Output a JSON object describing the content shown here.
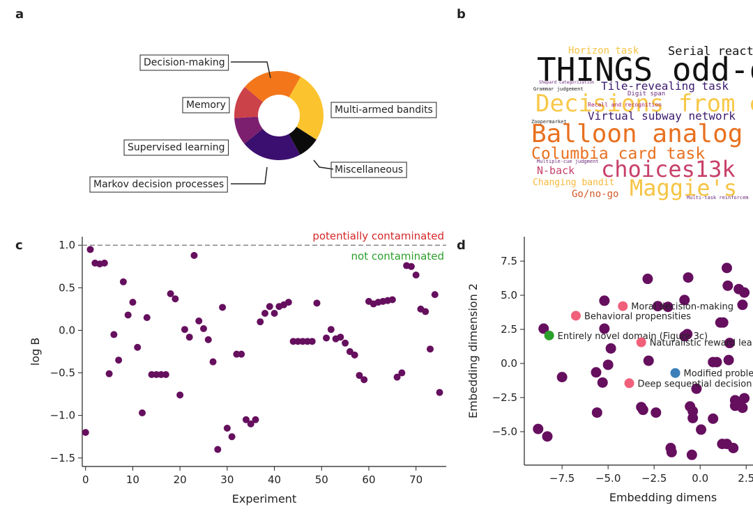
{
  "chart_data": [
    {
      "type": "donut",
      "panel": "a",
      "categories": [
        "Decision-making",
        "Multi-armed bandits",
        "Miscellaneous",
        "Markov decision processes",
        "Supervised learning",
        "Memory"
      ],
      "values": [
        22,
        26,
        8,
        22,
        10,
        12
      ],
      "colors": [
        "#f3771a",
        "#fbc42f",
        "#0b0b0b",
        "#3b0f6f",
        "#7b1f6e",
        "#cc4249"
      ]
    },
    {
      "type": "wordcloud",
      "panel": "b",
      "words": [
        {
          "text": "Horizon task",
          "color": "#f6c445"
        },
        {
          "text": "Serial react",
          "color": "#111111"
        },
        {
          "text": "THINGS odd-o",
          "color": "#111111"
        },
        {
          "text": "Tile-revealing task",
          "color": "#3b1a6e"
        },
        {
          "text": "Decisions from e",
          "color": "#f8c848"
        },
        {
          "text": "Virtual subway network",
          "color": "#3b1a6e"
        },
        {
          "text": "Balloon analog r",
          "color": "#e8701f"
        },
        {
          "text": "Columbia card task",
          "color": "#e8701f"
        },
        {
          "text": "N-back",
          "color": "#c8406a"
        },
        {
          "text": "choices13k",
          "color": "#c8406a"
        },
        {
          "text": "Changing bandit",
          "color": "#f6b93b"
        },
        {
          "text": "Maggie's",
          "color": "#f6c445"
        },
        {
          "text": "Go/no-go",
          "color": "#d4582a"
        },
        {
          "text": "Shepard categorization",
          "color": "#6a2a7a"
        },
        {
          "text": "Grammar judgement",
          "color": "#222222"
        },
        {
          "text": "Digit span",
          "color": "#6a2a7a"
        },
        {
          "text": "Recall and recognition",
          "color": "#a0236a"
        },
        {
          "text": "Zoopermarket",
          "color": "#222222"
        },
        {
          "text": "Multiple-cue judgment",
          "color": "#6a2a7a"
        },
        {
          "text": "Multi-task reinforcem",
          "color": "#6a2a7a"
        }
      ]
    },
    {
      "type": "scatter",
      "panel": "c",
      "xlabel": "Experiment",
      "ylabel": "log B",
      "color": "#650f5e",
      "x": [
        0,
        1,
        2,
        3,
        4,
        5,
        6,
        7,
        8,
        9,
        10,
        11,
        12,
        13,
        14,
        15,
        16,
        17,
        18,
        19,
        20,
        21,
        22,
        23,
        24,
        25,
        26,
        27,
        28,
        29,
        30,
        31,
        32,
        33,
        34,
        35,
        36,
        37,
        38,
        39,
        40,
        41,
        42,
        43,
        44,
        45,
        46,
        47,
        48,
        49,
        51,
        52,
        53,
        54,
        55,
        56,
        57,
        58,
        59,
        60,
        61,
        62,
        63,
        64,
        65,
        66,
        67,
        68,
        69,
        70,
        71,
        72,
        73,
        74,
        75
      ],
      "y": [
        -1.2,
        0.95,
        0.79,
        0.78,
        0.79,
        -0.51,
        -0.05,
        -0.35,
        0.57,
        0.18,
        0.33,
        -0.2,
        -0.97,
        0.15,
        -0.52,
        -0.52,
        -0.52,
        -0.52,
        0.43,
        0.37,
        -0.76,
        0.01,
        -0.08,
        0.88,
        0.11,
        0.02,
        -0.11,
        -0.37,
        -1.4,
        0.27,
        -1.15,
        -1.25,
        -0.28,
        -0.28,
        -1.05,
        -1.1,
        -1.05,
        0.1,
        0.2,
        0.28,
        0.2,
        0.28,
        0.3,
        0.33,
        -0.13,
        -0.13,
        -0.13,
        -0.13,
        -0.13,
        0.32,
        -0.09,
        0.01,
        -0.1,
        -0.08,
        -0.15,
        -0.25,
        -0.29,
        -0.53,
        -0.58,
        0.34,
        0.31,
        0.33,
        0.34,
        0.35,
        0.36,
        -0.55,
        -0.5,
        0.76,
        0.75,
        0.65,
        0.25,
        0.22,
        -0.22,
        0.42,
        -0.73
      ],
      "xlim": [
        -0.7,
        76.4
      ],
      "ylim": [
        -1.6,
        1.1
      ],
      "xticks": [
        0,
        10,
        20,
        30,
        40,
        50,
        60,
        70
      ],
      "yticks": [
        {
          "value": -1.5,
          "label": "−1.5"
        },
        {
          "value": -1,
          "label": "−1.0"
        },
        {
          "value": -0.5,
          "label": "−0.5"
        },
        {
          "value": 0,
          "label": "0.0"
        },
        0.5,
        {
          "value": 1,
          "label": "1.0"
        }
      ],
      "threshold": 1,
      "annotations": [
        {
          "text": "potentially contaminated",
          "color": "#d62728"
        },
        {
          "text": "not contaminated",
          "color": "#2ca02c"
        }
      ]
    },
    {
      "type": "embedding",
      "panel": "d",
      "xlabel": "Embedding dimens",
      "ylabel": "Embedding dimension 2",
      "color": "#650f5e",
      "x": [
        -8.5,
        -8.8,
        -8.3,
        -7.5,
        -5.6,
        -5.65,
        -5.2,
        -5.2,
        -5.3,
        -4.85,
        -5.0,
        -2.85,
        -2.8,
        -3.2,
        -3.1,
        -2.4,
        -2.3,
        -1.75,
        -1.6,
        -1.55,
        -0.65,
        -0.85,
        -0.7,
        -0.85,
        -0.55,
        -0.4,
        -0.4,
        0.05,
        -0.45,
        -0.2,
        0.7,
        0.9,
        1.1,
        1.25,
        1.45,
        1.5,
        1.6,
        1.55,
        0.7,
        1.2,
        1.45,
        1.8,
        2.1,
        2.4,
        2.3,
        1.9,
        2.1,
        1.9,
        2.3,
        2.4
      ],
      "y": [
        2.55,
        -4.8,
        -5.35,
        -1.0,
        -3.6,
        -0.65,
        4.6,
        2.55,
        -1.4,
        1.1,
        -0.1,
        6.2,
        0.2,
        -3.2,
        -3.4,
        -3.6,
        4.2,
        4.15,
        -6.2,
        -6.5,
        6.3,
        4.65,
        2.15,
        2.0,
        -3.15,
        -3.5,
        -4.0,
        -4.85,
        -6.7,
        -1.85,
        0.1,
        0.1,
        3.0,
        3.0,
        7.0,
        5.7,
        1.5,
        0.25,
        -4.05,
        -5.9,
        -5.9,
        -6.2,
        5.45,
        5.2,
        4.3,
        -2.7,
        -2.95,
        -3.1,
        -3.25,
        -2.55
      ],
      "highlights": [
        {
          "label": "Moral decision-making",
          "x": -4.2,
          "y": 4.2,
          "color": "#f0607a"
        },
        {
          "label": "Behavioral propensities",
          "x": -6.75,
          "y": 3.5,
          "color": "#f0607a"
        },
        {
          "label": "Entirely novel domain (Figure 3c)",
          "x": -8.2,
          "y": 2.05,
          "color": "#2ca02c"
        },
        {
          "label": "Naturalistic reward lea",
          "x": -3.2,
          "y": 1.55,
          "color": "#f0607a"
        },
        {
          "label": "Modified proble",
          "x": -1.35,
          "y": -0.7,
          "color": "#3b7fb8"
        },
        {
          "label": "Deep sequential decision",
          "x": -3.85,
          "y": -1.45,
          "color": "#f0607a"
        }
      ],
      "xlim": [
        -9.55,
        2.87
      ],
      "ylim": [
        -7.45,
        9.29
      ],
      "xticks": [
        {
          "value": -7.5,
          "label": "−7.5"
        },
        {
          "value": -5,
          "label": "−5.0"
        },
        {
          "value": -2.5,
          "label": "−2.5"
        },
        {
          "value": 0,
          "label": "0.0"
        },
        2.5
      ],
      "yticks": [
        {
          "value": -5,
          "label": "−5.0"
        },
        {
          "value": -2.5,
          "label": "−2.5"
        },
        {
          "value": 0,
          "label": "0.0"
        },
        2.5,
        {
          "value": 5,
          "label": "5.0"
        },
        7.5
      ]
    }
  ]
}
